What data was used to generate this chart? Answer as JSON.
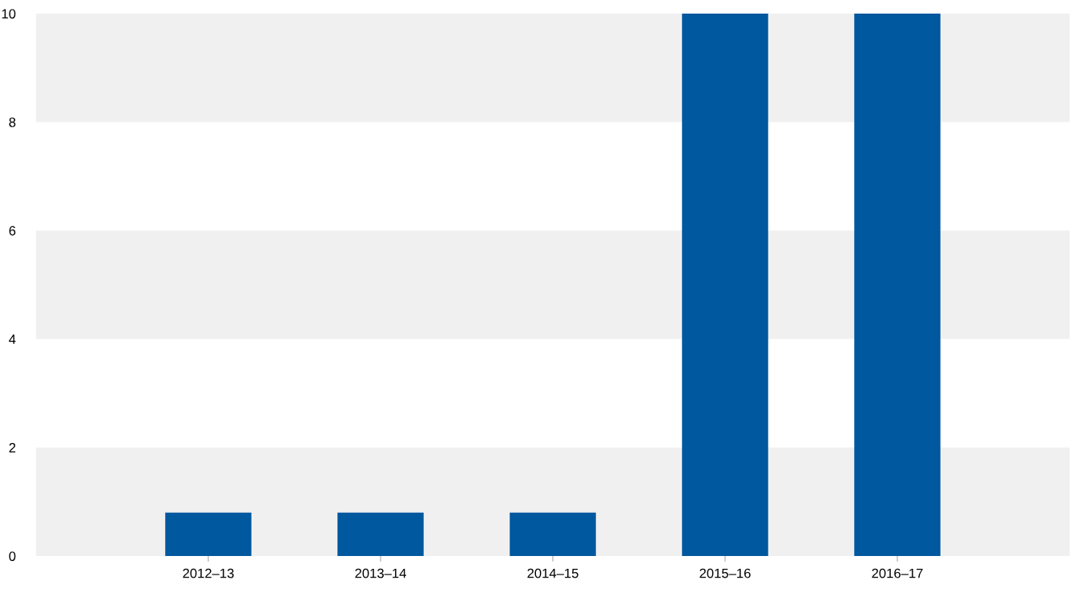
{
  "chart_data": {
    "type": "bar",
    "categories": [
      "2012–13",
      "2013–14",
      "2014–15",
      "2015–16",
      "2016–17"
    ],
    "values": [
      0.8,
      0.8,
      0.8,
      10,
      10
    ],
    "color": "#00589f",
    "ylim": [
      0,
      10
    ],
    "yticks": [
      0,
      2,
      4,
      6,
      8,
      10
    ],
    "grid": false,
    "legend": false,
    "bands": [
      {
        "axis": "y",
        "from": 0,
        "to": 2,
        "color": "#f0f0f0"
      },
      {
        "axis": "y",
        "from": 4,
        "to": 6,
        "color": "#f0f0f0"
      },
      {
        "axis": "y",
        "from": 8,
        "to": 10,
        "color": "#f0f0f0"
      }
    ]
  }
}
